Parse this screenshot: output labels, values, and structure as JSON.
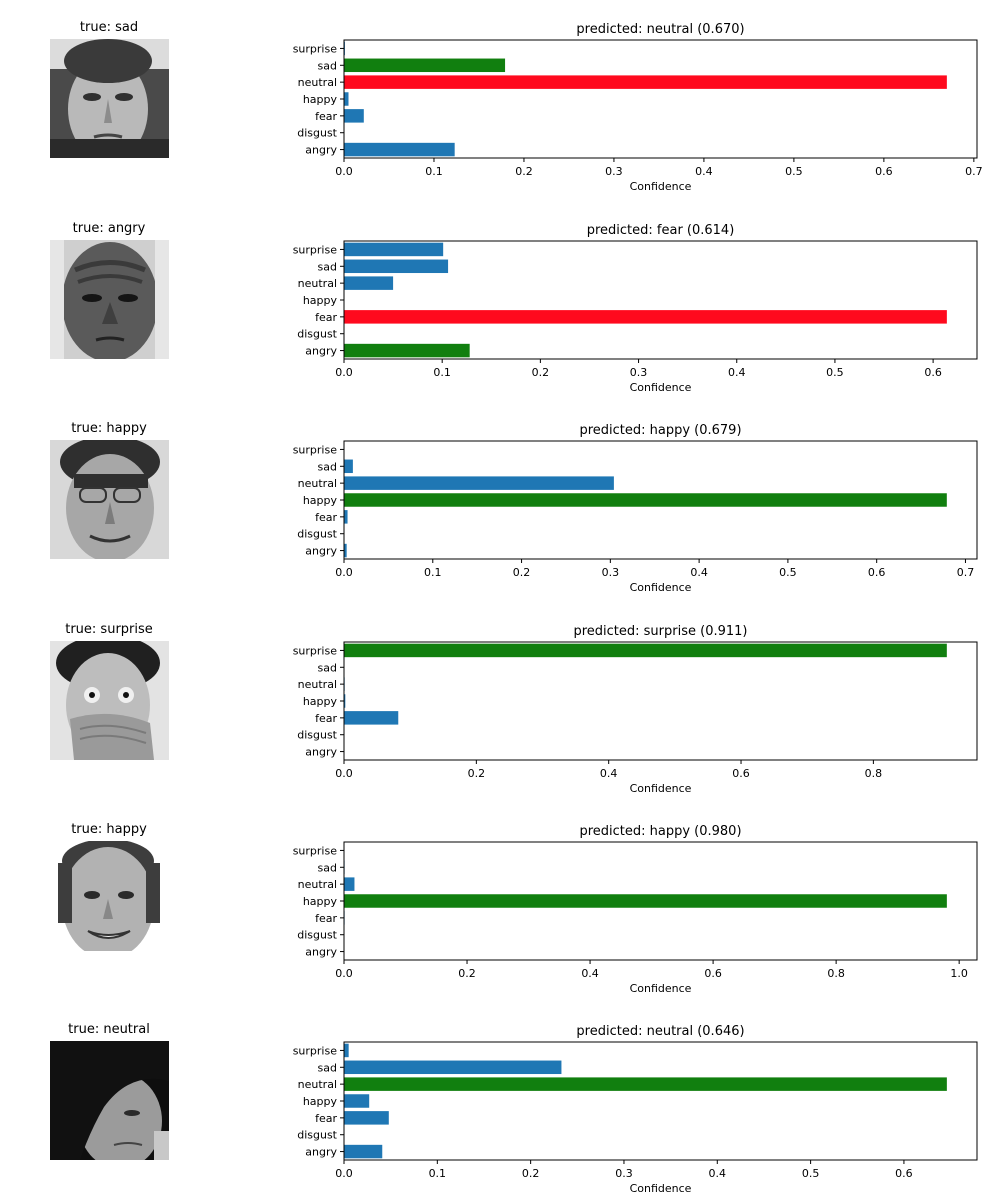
{
  "classes": [
    "angry",
    "disgust",
    "fear",
    "happy",
    "neutral",
    "sad",
    "surprise"
  ],
  "x_axis_label": "Confidence",
  "colors": {
    "predicted_wrong": "#ff0a1e",
    "true_class": "#117f0f",
    "other": "#1f77b4"
  },
  "rows": [
    {
      "true_label": "true: sad",
      "face": "face-sad-man",
      "chart": {
        "title": "predicted: neutral (0.670)"
      }
    },
    {
      "true_label": "true: angry",
      "face": "face-angry-man",
      "chart": {
        "title": "predicted: fear (0.614)"
      }
    },
    {
      "true_label": "true: happy",
      "face": "face-happy-man-glasses",
      "chart": {
        "title": "predicted: happy (0.679)"
      }
    },
    {
      "true_label": "true: surprise",
      "face": "face-surprised-boy",
      "chart": {
        "title": "predicted: surprise (0.911)"
      }
    },
    {
      "true_label": "true: happy",
      "face": "face-smiling-young-man",
      "chart": {
        "title": "predicted: happy (0.980)"
      }
    },
    {
      "true_label": "true: neutral",
      "face": "face-neutral-fringe",
      "chart": {
        "title": "predicted: neutral (0.646)"
      }
    }
  ],
  "chart_data": [
    {
      "type": "bar",
      "orientation": "horizontal",
      "title": "predicted: neutral (0.670)",
      "xlabel": "Confidence",
      "categories": [
        "angry",
        "disgust",
        "fear",
        "happy",
        "neutral",
        "sad",
        "surprise"
      ],
      "values": [
        0.123,
        0.0,
        0.022,
        0.005,
        0.67,
        0.179,
        0.001
      ],
      "bar_colors": [
        "#1f77b4",
        "#1f77b4",
        "#1f77b4",
        "#1f77b4",
        "#ff0a1e",
        "#117f0f",
        "#1f77b4"
      ],
      "xlim": [
        0,
        0.7035
      ],
      "xticks": [
        0.0,
        0.1,
        0.2,
        0.3,
        0.4,
        0.5,
        0.6,
        0.7
      ],
      "xtick_labels": [
        "0.0",
        "0.1",
        "0.2",
        "0.3",
        "0.4",
        "0.5",
        "0.6",
        "0.7"
      ]
    },
    {
      "type": "bar",
      "orientation": "horizontal",
      "title": "predicted: fear (0.614)",
      "xlabel": "Confidence",
      "categories": [
        "angry",
        "disgust",
        "fear",
        "happy",
        "neutral",
        "sad",
        "surprise"
      ],
      "values": [
        0.128,
        0.0,
        0.614,
        0.0,
        0.05,
        0.106,
        0.101
      ],
      "bar_colors": [
        "#117f0f",
        "#1f77b4",
        "#ff0a1e",
        "#1f77b4",
        "#1f77b4",
        "#1f77b4",
        "#1f77b4"
      ],
      "xlim": [
        0,
        0.6447
      ],
      "xticks": [
        0.0,
        0.1,
        0.2,
        0.3,
        0.4,
        0.5,
        0.6
      ],
      "xtick_labels": [
        "0.0",
        "0.1",
        "0.2",
        "0.3",
        "0.4",
        "0.5",
        "0.6"
      ]
    },
    {
      "type": "bar",
      "orientation": "horizontal",
      "title": "predicted: happy (0.679)",
      "xlabel": "Confidence",
      "categories": [
        "angry",
        "disgust",
        "fear",
        "happy",
        "neutral",
        "sad",
        "surprise"
      ],
      "values": [
        0.003,
        0.0,
        0.004,
        0.679,
        0.304,
        0.01,
        0.0
      ],
      "bar_colors": [
        "#1f77b4",
        "#1f77b4",
        "#1f77b4",
        "#117f0f",
        "#1f77b4",
        "#1f77b4",
        "#1f77b4"
      ],
      "xlim": [
        0,
        0.713
      ],
      "xticks": [
        0.0,
        0.1,
        0.2,
        0.3,
        0.4,
        0.5,
        0.6,
        0.7
      ],
      "xtick_labels": [
        "0.0",
        "0.1",
        "0.2",
        "0.3",
        "0.4",
        "0.5",
        "0.6",
        "0.7"
      ]
    },
    {
      "type": "bar",
      "orientation": "horizontal",
      "title": "predicted: surprise (0.911)",
      "xlabel": "Confidence",
      "categories": [
        "angry",
        "disgust",
        "fear",
        "happy",
        "neutral",
        "sad",
        "surprise"
      ],
      "values": [
        0.0,
        0.0,
        0.082,
        0.002,
        0.001,
        0.0,
        0.911
      ],
      "bar_colors": [
        "#1f77b4",
        "#1f77b4",
        "#1f77b4",
        "#1f77b4",
        "#1f77b4",
        "#1f77b4",
        "#117f0f"
      ],
      "xlim": [
        0,
        0.9566
      ],
      "xticks": [
        0.0,
        0.2,
        0.4,
        0.6,
        0.8
      ],
      "xtick_labels": [
        "0.0",
        "0.2",
        "0.4",
        "0.6",
        "0.8"
      ]
    },
    {
      "type": "bar",
      "orientation": "horizontal",
      "title": "predicted: happy (0.980)",
      "xlabel": "Confidence",
      "categories": [
        "angry",
        "disgust",
        "fear",
        "happy",
        "neutral",
        "sad",
        "surprise"
      ],
      "values": [
        0.0,
        0.0,
        0.001,
        0.98,
        0.017,
        0.001,
        0.0
      ],
      "bar_colors": [
        "#1f77b4",
        "#1f77b4",
        "#1f77b4",
        "#117f0f",
        "#1f77b4",
        "#1f77b4",
        "#1f77b4"
      ],
      "xlim": [
        0,
        1.029
      ],
      "xticks": [
        0.0,
        0.2,
        0.4,
        0.6,
        0.8,
        1.0
      ],
      "xtick_labels": [
        "0.0",
        "0.2",
        "0.4",
        "0.6",
        "0.8",
        "1.0"
      ]
    },
    {
      "type": "bar",
      "orientation": "horizontal",
      "title": "predicted: neutral (0.646)",
      "xlabel": "Confidence",
      "categories": [
        "angry",
        "disgust",
        "fear",
        "happy",
        "neutral",
        "sad",
        "surprise"
      ],
      "values": [
        0.041,
        0.0,
        0.048,
        0.027,
        0.646,
        0.233,
        0.005
      ],
      "bar_colors": [
        "#1f77b4",
        "#1f77b4",
        "#1f77b4",
        "#1f77b4",
        "#117f0f",
        "#1f77b4",
        "#1f77b4"
      ],
      "xlim": [
        0,
        0.6783
      ],
      "xticks": [
        0.0,
        0.1,
        0.2,
        0.3,
        0.4,
        0.5,
        0.6
      ],
      "xtick_labels": [
        "0.0",
        "0.1",
        "0.2",
        "0.3",
        "0.4",
        "0.5",
        "0.6"
      ]
    }
  ]
}
